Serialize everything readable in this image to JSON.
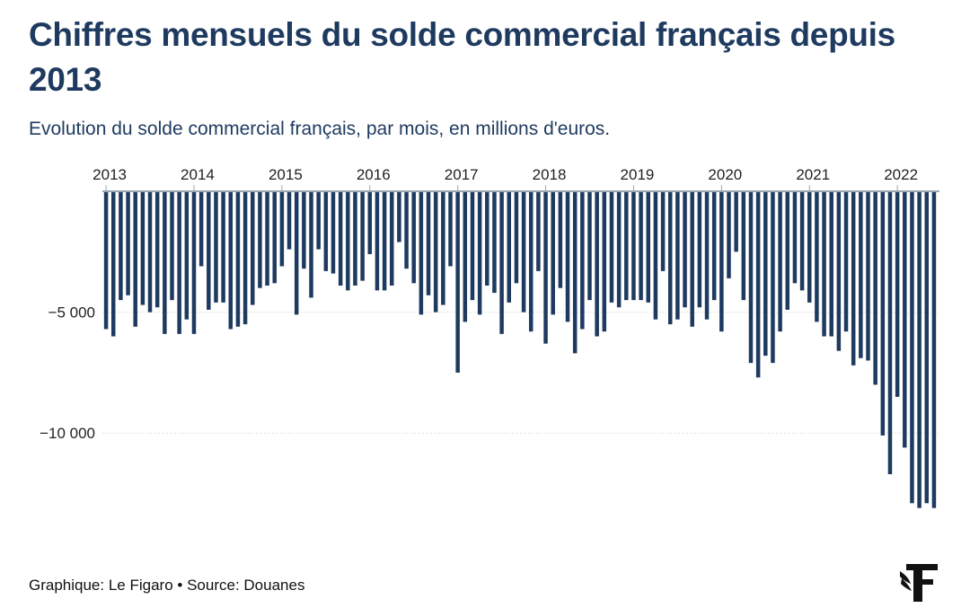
{
  "header": {
    "title": "Chiffres mensuels du solde commercial français depuis 2013",
    "subtitle": "Evolution du solde commercial français, par mois, en millions d'euros."
  },
  "footer": {
    "credit": "Graphique: Le Figaro",
    "separator": "•",
    "source": "Source: Douanes"
  },
  "logo": {
    "icon": "le-figaro-logo-icon"
  },
  "colors": {
    "bar": "#1e3a5f",
    "grid": "#cccccc"
  },
  "chart_data": {
    "type": "bar",
    "title": "Chiffres mensuels du solde commercial français depuis 2013",
    "subtitle": "Evolution du solde commercial français, par mois, en millions d'euros.",
    "xlabel": "",
    "ylabel": "",
    "x_axis_position": "top",
    "grid": "horizontal dotted",
    "ylim": [
      -13000,
      0
    ],
    "yticks": [
      {
        "value": -5000,
        "label": "−5 000"
      },
      {
        "value": -10000,
        "label": "−10 000"
      }
    ],
    "start_month": "2013-01",
    "year_labels": [
      "2013",
      "2014",
      "2015",
      "2016",
      "2017",
      "2018",
      "2019",
      "2020",
      "2021",
      "2022"
    ],
    "series": [
      {
        "values": [
          -5700,
          -6000,
          -4500,
          -4300,
          -5600,
          -4700,
          -5000,
          -4800,
          -5900,
          -4500,
          -5900,
          -5300,
          -5900,
          -3100,
          -4900,
          -4600,
          -4600,
          -5700,
          -5600,
          -5500,
          -4700,
          -4000,
          -3900,
          -3800,
          -3100,
          -2400,
          -5100,
          -3200,
          -4400,
          -2400,
          -3300,
          -3400,
          -3900,
          -4100,
          -3900,
          -3700,
          -2600,
          -4100,
          -4100,
          -3900,
          -2100,
          -3200,
          -3800,
          -5100,
          -4300,
          -5000,
          -4700,
          -3100,
          -7500,
          -5400,
          -4500,
          -5100,
          -3900,
          -4200,
          -5900,
          -4600,
          -3800,
          -5000,
          -5800,
          -3300,
          -6300,
          -5100,
          -4000,
          -5400,
          -6700,
          -5700,
          -4500,
          -6000,
          -5800,
          -4600,
          -4800,
          -4500,
          -4500,
          -4500,
          -4600,
          -5300,
          -3300,
          -5500,
          -5300,
          -4800,
          -5600,
          -4800,
          -5300,
          -4500,
          -5800,
          -3600,
          -2500,
          -4500,
          -7100,
          -7700,
          -6800,
          -7100,
          -5800,
          -4900,
          -3800,
          -4100,
          -4600,
          -5400,
          -6000,
          -6000,
          -6600,
          -5800,
          -7200,
          -6900,
          -7000,
          -8000,
          -10100,
          -11700,
          -8500,
          -10600,
          -12900,
          -13100,
          -12900,
          -13100
        ]
      }
    ]
  }
}
